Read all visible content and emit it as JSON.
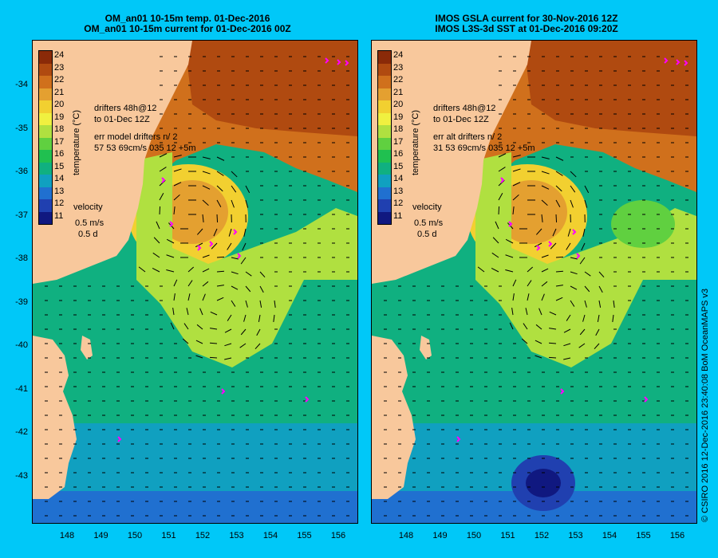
{
  "left_panel": {
    "title_line1": "OM_an01 10-15m temp. 01-Dec-2016",
    "title_line2": "OM_an01 10-15m current for 01-Dec-2016 00Z",
    "legend_drifters": "drifters 48h@12",
    "legend_to": "to 01-Dec 12Z",
    "legend_err": "err model drifters n/ 2",
    "legend_err_values": "57 53 69cm/s 035 12 +5m"
  },
  "right_panel": {
    "title_line1": "IMOS GSLA current for 30-Nov-2016 12Z",
    "title_line2": "IMOS L3S-3d SST at 01-Dec-2016 09:20Z",
    "legend_drifters": "drifters 48h@12",
    "legend_to": "to 01-Dec 12Z",
    "legend_err": "err alt drifters n/ 2",
    "legend_err_values": "31 53 69cm/s 035 12 +5m"
  },
  "colorbar": {
    "title": "temperature (°C)",
    "labels": [
      "24",
      "23",
      "22",
      "21",
      "20",
      "19",
      "18",
      "17",
      "16",
      "15",
      "14",
      "13",
      "12",
      "11"
    ],
    "colors": [
      "#8a2a08",
      "#b04a10",
      "#d0701c",
      "#e4a030",
      "#f2d030",
      "#f0f040",
      "#b0e040",
      "#60d040",
      "#20c050",
      "#10b080",
      "#10a0c0",
      "#2070d0",
      "#2040b0",
      "#101880"
    ]
  },
  "velocity_legend": {
    "title": "velocity",
    "speed": "0.5 m/s",
    "time": "0.5 d"
  },
  "axes": {
    "lat_labels": [
      "-34",
      "-35",
      "-36",
      "-37",
      "-38",
      "-39",
      "-40",
      "-41",
      "-42",
      "-43"
    ],
    "lon_labels": [
      "148",
      "149",
      "150",
      "151",
      "152",
      "153",
      "154",
      "155",
      "156"
    ]
  },
  "colors": {
    "background": "#00c8f8",
    "land": "#f8c89c",
    "drifter": "#ff00ff"
  },
  "credit": "© CSIRO 2016  12-Dec-2016 23:40:08 BoM OceanMAPS v3"
}
